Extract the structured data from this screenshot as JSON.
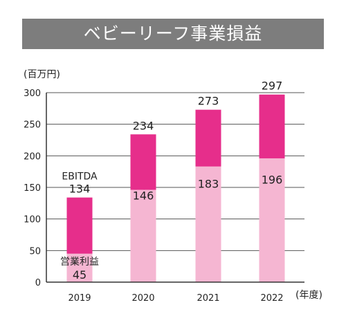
{
  "title": "ベビーリーフ事業損益",
  "chart_data": {
    "type": "bar",
    "unit_label": "(百万円)",
    "x_unit_label": "(年度)",
    "categories": [
      "2019",
      "2020",
      "2021",
      "2022"
    ],
    "series": [
      {
        "name": "営業利益",
        "values": [
          45,
          146,
          183,
          196
        ],
        "color": "#f5b6d2"
      },
      {
        "name": "EBITDA",
        "values": [
          134,
          234,
          273,
          297
        ],
        "color": "#e62e8b"
      }
    ],
    "ylim": [
      0,
      300
    ],
    "yticks": [
      0,
      50,
      100,
      150,
      200,
      250,
      300
    ],
    "grid": true
  }
}
